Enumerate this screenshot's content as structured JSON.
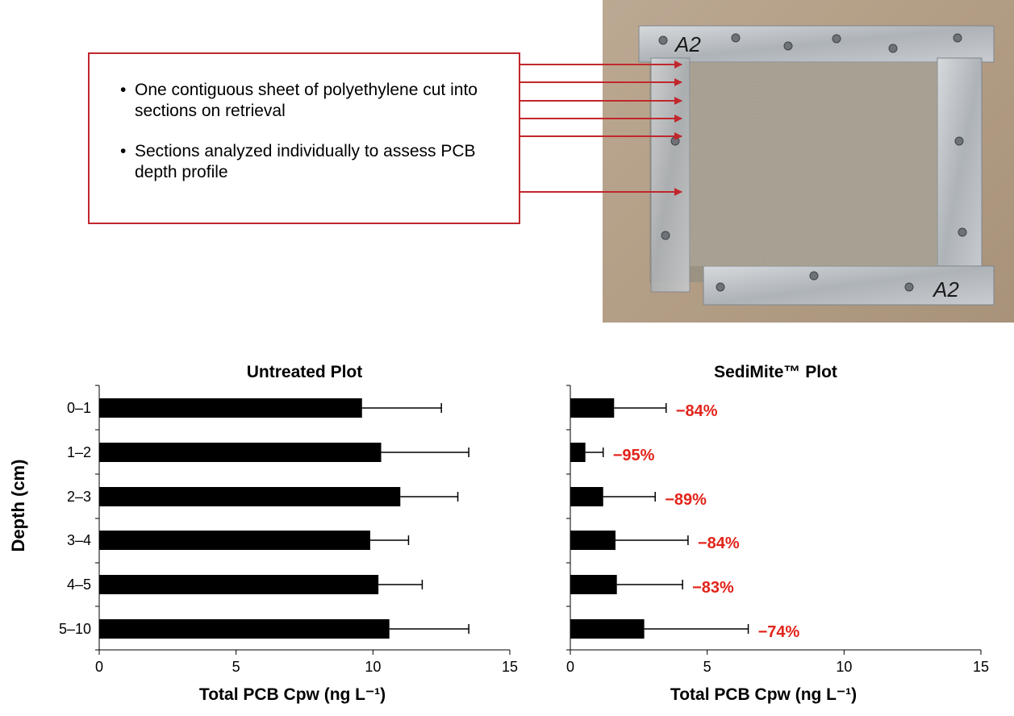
{
  "callout": {
    "bullets": [
      "One contiguous sheet of polyethylene cut into sections on retrieval",
      "Sections analyzed individually to assess PCB depth profile"
    ]
  },
  "photo": {
    "labels": [
      "A2",
      "A2"
    ]
  },
  "colors": {
    "accent": "#c1272d",
    "bar": "#000000",
    "reduction_text": "#e2231a"
  },
  "chart_data": [
    {
      "type": "bar",
      "orientation": "horizontal",
      "title": "Untreated Plot",
      "ylabel": "Depth (cm)",
      "xlabel": "Total PCB Cpw (ng L⁻¹)",
      "categories": [
        "0–1",
        "1–2",
        "2–3",
        "3–4",
        "4–5",
        "5–10"
      ],
      "values": [
        9.6,
        10.3,
        11.0,
        9.9,
        10.2,
        10.6
      ],
      "error_upper": [
        12.5,
        13.5,
        13.1,
        11.3,
        11.8,
        13.5
      ],
      "xlim": [
        0,
        15
      ],
      "xticks": [
        "0",
        "5",
        "10",
        "15"
      ]
    },
    {
      "type": "bar",
      "orientation": "horizontal",
      "title": "SediMite™ Plot",
      "xlabel": "Total PCB Cpw  (ng L⁻¹)",
      "categories": [
        "0–1",
        "1–2",
        "2–3",
        "3–4",
        "4–5",
        "5–10"
      ],
      "values": [
        1.6,
        0.55,
        1.2,
        1.65,
        1.7,
        2.7
      ],
      "error_upper": [
        3.5,
        1.2,
        3.1,
        4.3,
        4.1,
        6.5
      ],
      "annotations": [
        "−84%",
        "−95%",
        "−89%",
        "−84%",
        "−83%",
        "−74%"
      ],
      "xlim": [
        0,
        15
      ],
      "xticks": [
        "0",
        "5",
        "10",
        "15"
      ]
    }
  ]
}
